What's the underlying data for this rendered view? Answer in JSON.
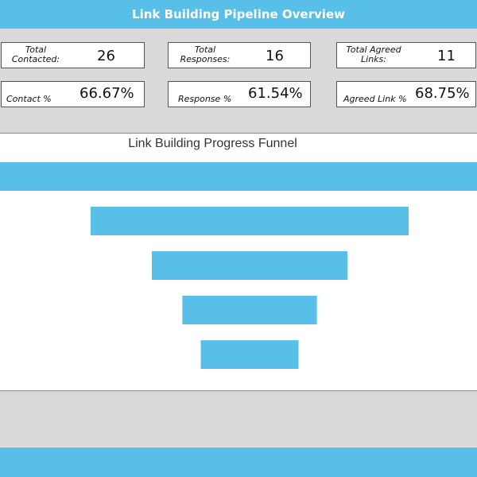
{
  "header": {
    "title": "Link Building Pipeline Overview"
  },
  "stats": [
    {
      "label": "Total\nContacted:",
      "value": "26"
    },
    {
      "label": "Total\nResponses:",
      "value": "16"
    },
    {
      "label": "Total Agreed\nLinks:",
      "value": "11"
    },
    {
      "label": "Contact %",
      "value": "66.67%"
    },
    {
      "label": "Response %",
      "value": "61.54%"
    },
    {
      "label": "Agreed Link %",
      "value": "68.75%"
    }
  ],
  "colors": {
    "accent": "#57bfe8",
    "panel_gray": "#d9d9d9",
    "funnel_bar": "#57bfe8"
  },
  "chart_data": {
    "type": "bar",
    "title": "Link Building Progress Funnel",
    "categories": [
      "",
      "",
      "",
      "",
      ""
    ],
    "values": [
      39,
      26,
      16,
      11,
      8
    ],
    "orientation": "horizontal-centered-funnel"
  }
}
